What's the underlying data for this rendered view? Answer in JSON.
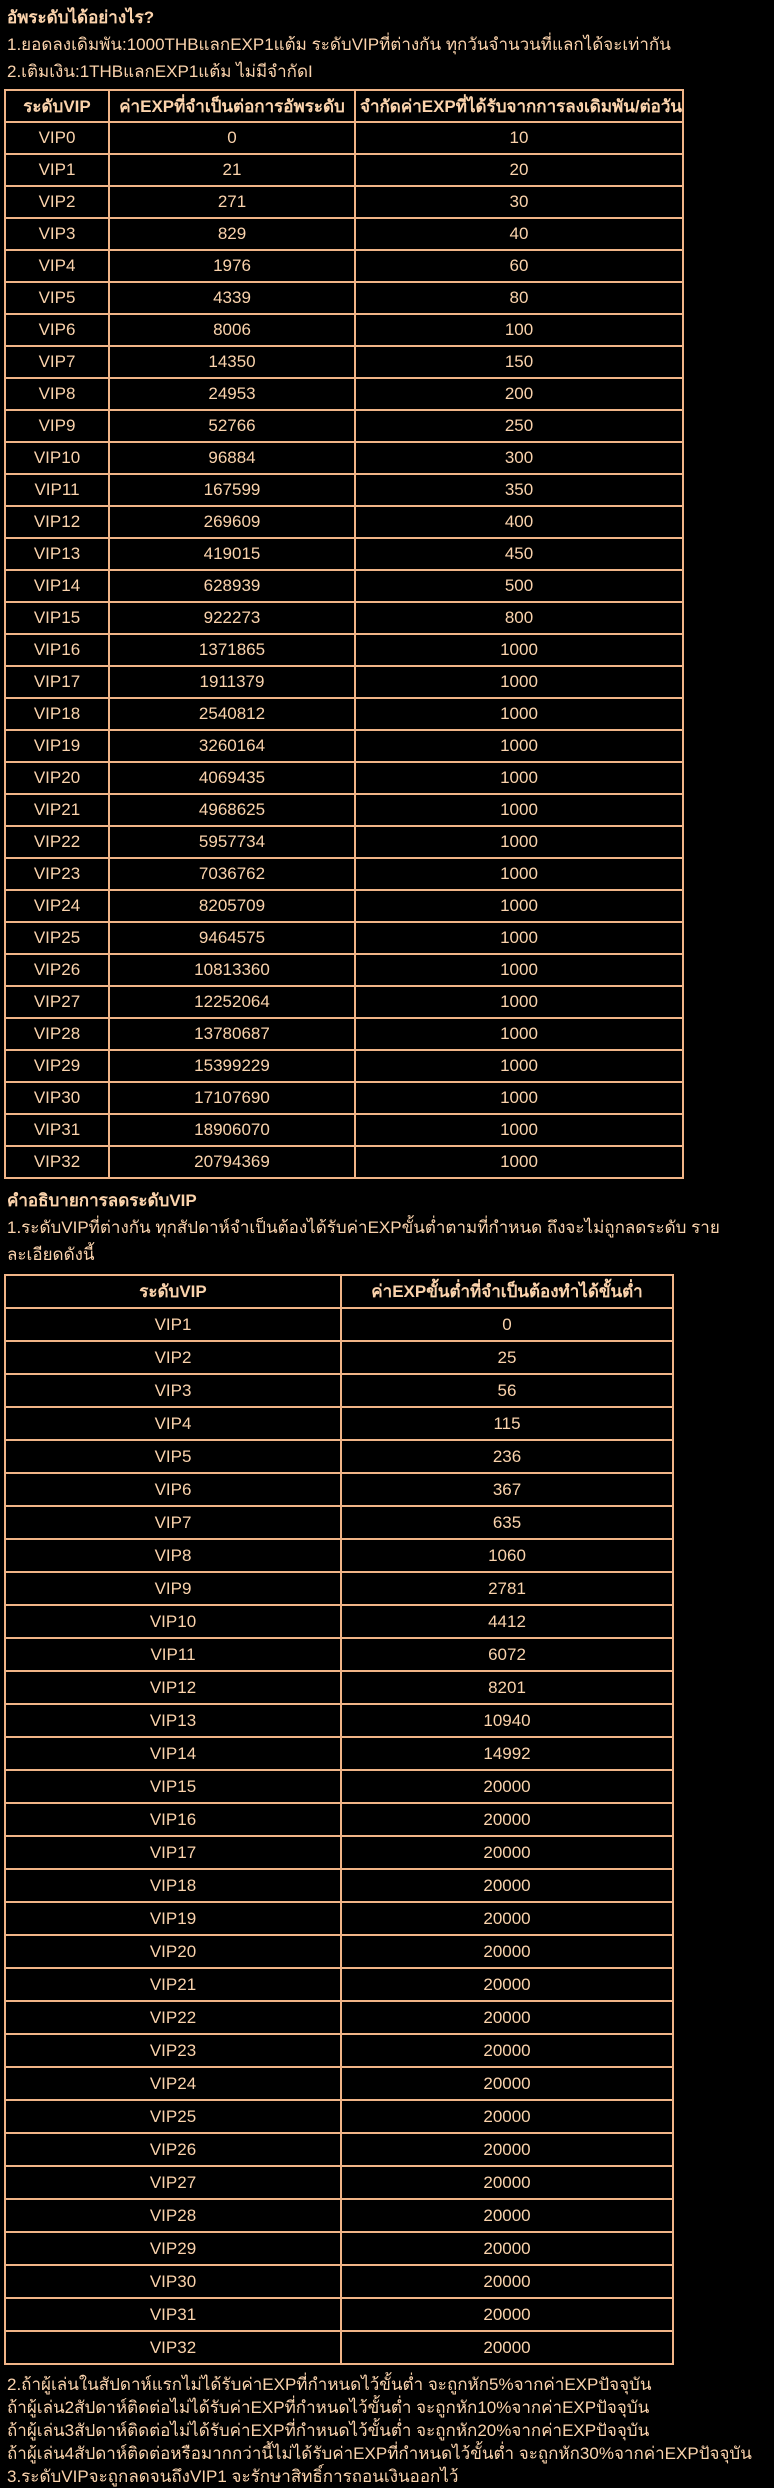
{
  "page": {
    "background_color": "#000000",
    "text_color": "#fbd3ac",
    "border_color": "#f0b487"
  },
  "intro": {
    "heading": "อัพระดับได้อย่างไร?",
    "lines": [
      "1.ยอดลงเดิมพัน:1000THBแลกEXP1แต้ม ระดับVIPที่ต่างกัน ทุกวันจำนวนที่แลกได้จะเท่ากัน",
      "2.เติมเงิน:1THBแลกEXP1แต้ม ไม่มีจำกัดI"
    ]
  },
  "upgrade_table": {
    "headers": [
      "ระดับVIP",
      "ค่าEXPที่จำเป็นต่อการอัพระดับ",
      "จำกัดค่าEXPที่ได้รับจากการลงเดิมพัน/ต่อวัน"
    ],
    "rows": [
      [
        "VIP0",
        "0",
        "10"
      ],
      [
        "VIP1",
        "21",
        "20"
      ],
      [
        "VIP2",
        "271",
        "30"
      ],
      [
        "VIP3",
        "829",
        "40"
      ],
      [
        "VIP4",
        "1976",
        "60"
      ],
      [
        "VIP5",
        "4339",
        "80"
      ],
      [
        "VIP6",
        "8006",
        "100"
      ],
      [
        "VIP7",
        "14350",
        "150"
      ],
      [
        "VIP8",
        "24953",
        "200"
      ],
      [
        "VIP9",
        "52766",
        "250"
      ],
      [
        "VIP10",
        "96884",
        "300"
      ],
      [
        "VIP11",
        "167599",
        "350"
      ],
      [
        "VIP12",
        "269609",
        "400"
      ],
      [
        "VIP13",
        "419015",
        "450"
      ],
      [
        "VIP14",
        "628939",
        "500"
      ],
      [
        "VIP15",
        "922273",
        "800"
      ],
      [
        "VIP16",
        "1371865",
        "1000"
      ],
      [
        "VIP17",
        "1911379",
        "1000"
      ],
      [
        "VIP18",
        "2540812",
        "1000"
      ],
      [
        "VIP19",
        "3260164",
        "1000"
      ],
      [
        "VIP20",
        "4069435",
        "1000"
      ],
      [
        "VIP21",
        "4968625",
        "1000"
      ],
      [
        "VIP22",
        "5957734",
        "1000"
      ],
      [
        "VIP23",
        "7036762",
        "1000"
      ],
      [
        "VIP24",
        "8205709",
        "1000"
      ],
      [
        "VIP25",
        "9464575",
        "1000"
      ],
      [
        "VIP26",
        "10813360",
        "1000"
      ],
      [
        "VIP27",
        "12252064",
        "1000"
      ],
      [
        "VIP28",
        "13780687",
        "1000"
      ],
      [
        "VIP29",
        "15399229",
        "1000"
      ],
      [
        "VIP30",
        "17107690",
        "1000"
      ],
      [
        "VIP31",
        "18906070",
        "1000"
      ],
      [
        "VIP32",
        "20794369",
        "1000"
      ]
    ]
  },
  "demotion": {
    "heading": "คำอธิบายการลดระดับVIP",
    "line": "1.ระดับVIPที่ต่างกัน ทุกสัปดาห์จำเป็นต้องได้รับค่าEXPขั้นต่ำตามที่กำหนด ถึงจะไม่ถูกลดระดับ รายละเอียดดังนี้"
  },
  "demotion_table": {
    "headers": [
      "ระดับVIP",
      "ค่าEXPขั้นต่ำที่จำเป็นต้องทำได้ขั้นต่ำ"
    ],
    "rows": [
      [
        "VIP1",
        "0"
      ],
      [
        "VIP2",
        "25"
      ],
      [
        "VIP3",
        "56"
      ],
      [
        "VIP4",
        "115"
      ],
      [
        "VIP5",
        "236"
      ],
      [
        "VIP6",
        "367"
      ],
      [
        "VIP7",
        "635"
      ],
      [
        "VIP8",
        "1060"
      ],
      [
        "VIP9",
        "2781"
      ],
      [
        "VIP10",
        "4412"
      ],
      [
        "VIP11",
        "6072"
      ],
      [
        "VIP12",
        "8201"
      ],
      [
        "VIP13",
        "10940"
      ],
      [
        "VIP14",
        "14992"
      ],
      [
        "VIP15",
        "20000"
      ],
      [
        "VIP16",
        "20000"
      ],
      [
        "VIP17",
        "20000"
      ],
      [
        "VIP18",
        "20000"
      ],
      [
        "VIP19",
        "20000"
      ],
      [
        "VIP20",
        "20000"
      ],
      [
        "VIP21",
        "20000"
      ],
      [
        "VIP22",
        "20000"
      ],
      [
        "VIP23",
        "20000"
      ],
      [
        "VIP24",
        "20000"
      ],
      [
        "VIP25",
        "20000"
      ],
      [
        "VIP26",
        "20000"
      ],
      [
        "VIP27",
        "20000"
      ],
      [
        "VIP28",
        "20000"
      ],
      [
        "VIP29",
        "20000"
      ],
      [
        "VIP30",
        "20000"
      ],
      [
        "VIP31",
        "20000"
      ],
      [
        "VIP32",
        "20000"
      ]
    ]
  },
  "footer": {
    "lines": [
      "2.ถ้าผู้เล่นในสัปดาห์แรกไม่ได้รับค่าEXPที่กำหนดไว้ขั้นต่ำ จะถูกหัก5%จากค่าEXPปัจจุบัน",
      "ถ้าผู้เล่น2สัปดาห์ติดต่อไม่ได้รับค่าEXPที่กำหนดไว้ขั้นต่ำ จะถูกหัก10%จากค่าEXPปัจจุบัน",
      "ถ้าผู้เล่น3สัปดาห์ติดต่อไม่ได้รับค่าEXPที่กำหนดไว้ขั้นต่ำ จะถูกหัก20%จากค่าEXPปัจจุบัน",
      "ถ้าผู้เล่น4สัปดาห์ติดต่อหรือมากกว่านี้ไม่ได้รับค่าEXPที่กำหนดไว้ขั้นต่ำ จะถูกหัก30%จากค่าEXPปัจจุบัน",
      "3.ระดับVIPจะถูกลดจนถึงVIP1 จะรักษาสิทธิ์การถอนเงินออกไว้"
    ]
  }
}
